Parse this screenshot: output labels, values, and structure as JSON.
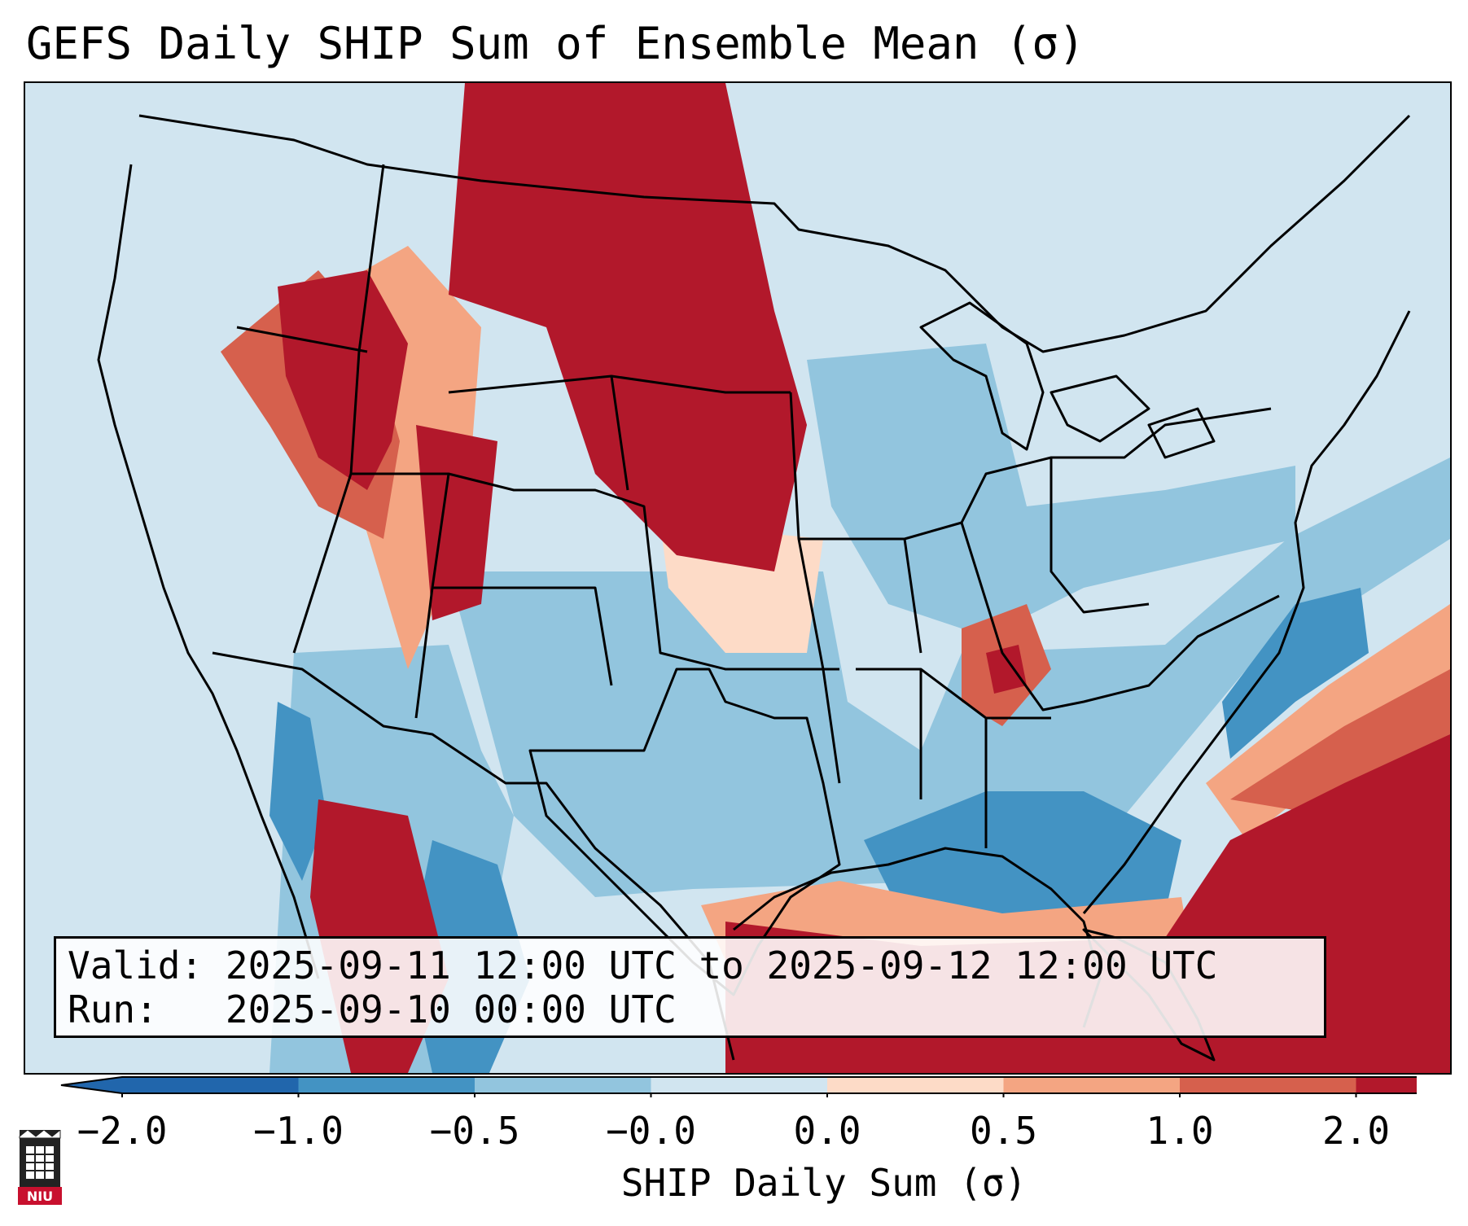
{
  "title": "GEFS Daily SHIP Sum of Ensemble Mean (σ)",
  "info": {
    "valid_label": "Valid:",
    "valid_value": "2025-09-11 12:00 UTC to 2025-09-12 12:00 UTC",
    "run_label": "Run:",
    "run_value": "2025-09-10 00:00 UTC"
  },
  "colorbar": {
    "title": "SHIP Daily Sum (σ)",
    "tick_labels": [
      "−2.0",
      "−1.0",
      "−0.5",
      "−0.0",
      "0.0",
      "0.5",
      "1.0",
      "2.0"
    ],
    "colors": [
      "#2166ac",
      "#4393c3",
      "#92c5de",
      "#d1e5f0",
      "#fddbc7",
      "#f4a582",
      "#d6604d",
      "#b2182b"
    ]
  },
  "logo": {
    "text": "NIU",
    "color": "#c8102e"
  }
}
